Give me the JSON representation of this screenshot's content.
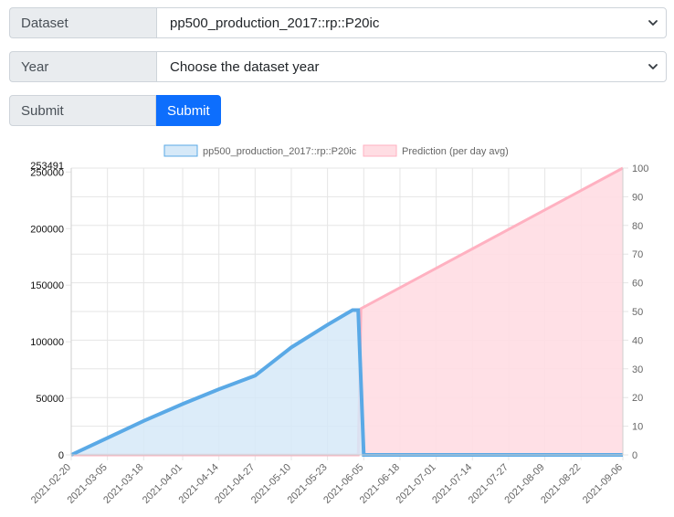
{
  "form": {
    "dataset_label": "Dataset",
    "dataset_value": "pp500_production_2017::rp::P20ic",
    "year_label": "Year",
    "year_placeholder": "Choose the dataset year",
    "submit_label": "Submit",
    "submit_button": "Submit"
  },
  "colors": {
    "series_fill": "#d6e9f8",
    "series_line": "#5aa9e6",
    "prediction_fill": "#ffdde3",
    "prediction_line": "#ffb1c1",
    "button": "#0d6efd"
  },
  "chart_data": {
    "type": "line",
    "left_axis_top_label": "253491",
    "left_ylim": [
      0,
      253491
    ],
    "left_ticks": [
      0,
      50000,
      100000,
      150000,
      200000,
      250000
    ],
    "right_ylim": [
      0,
      100
    ],
    "right_ticks": [
      0,
      10,
      20,
      30,
      40,
      50,
      60,
      70,
      80,
      90,
      100
    ],
    "x_tick_labels": [
      "2021-02-20",
      "2021-03-05",
      "2021-03-18",
      "2021-04-01",
      "2021-04-14",
      "2021-04-27",
      "2021-05-10",
      "2021-05-23",
      "2021-06-05",
      "2021-06-18",
      "2021-07-01",
      "2021-07-14",
      "2021-07-27",
      "2021-08-09",
      "2021-08-22",
      "2021-09-06"
    ],
    "x_start": "2021-02-20",
    "x_end": "2021-09-06",
    "series": [
      {
        "name": "pp500_production_2017::rp::P20ic",
        "axis": "left",
        "points": [
          [
            "2021-02-20",
            0
          ],
          [
            "2021-03-05",
            15000
          ],
          [
            "2021-03-18",
            30000
          ],
          [
            "2021-04-01",
            45000
          ],
          [
            "2021-04-14",
            58000
          ],
          [
            "2021-04-27",
            70000
          ],
          [
            "2021-05-10",
            95000
          ],
          [
            "2021-05-23",
            115000
          ],
          [
            "2021-06-01",
            128000
          ],
          [
            "2021-06-03",
            128000
          ],
          [
            "2021-06-05",
            0
          ],
          [
            "2021-09-06",
            0
          ]
        ]
      },
      {
        "name": "Prediction (per day avg)",
        "axis": "right",
        "points": [
          [
            "2021-02-20",
            0
          ],
          [
            "2021-06-03",
            0
          ],
          [
            "2021-06-04",
            51
          ],
          [
            "2021-09-06",
            100
          ]
        ]
      }
    ],
    "legend_position": "top",
    "grid": true
  }
}
